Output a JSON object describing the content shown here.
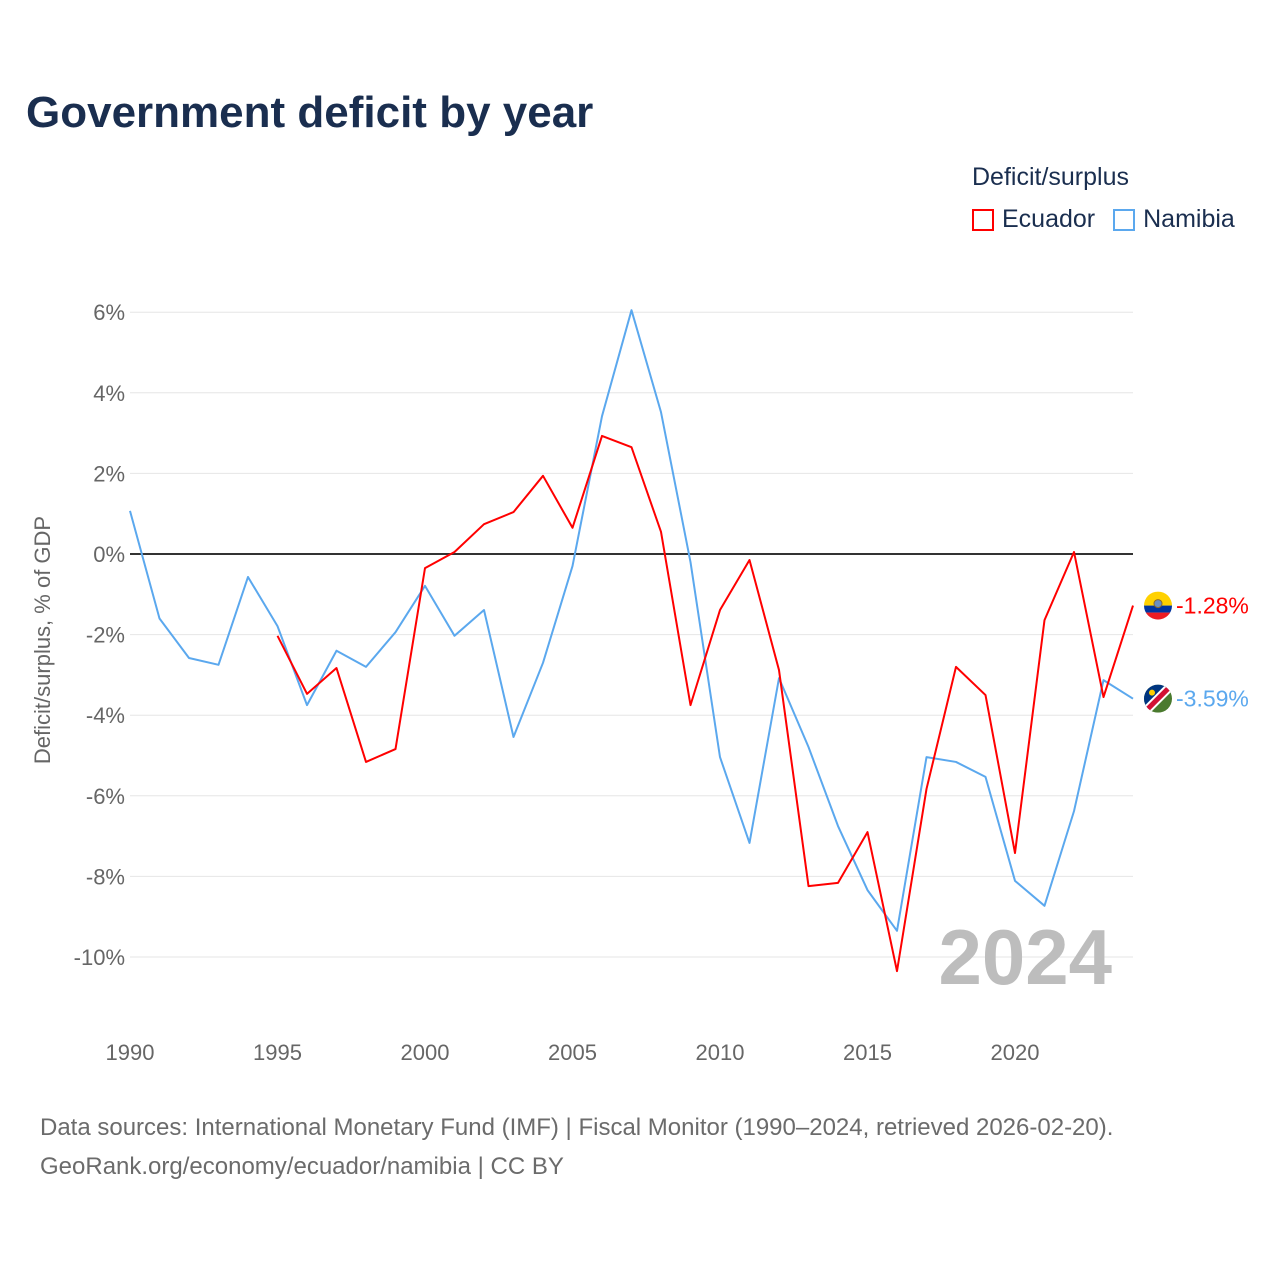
{
  "title": "Government deficit by year",
  "legend": {
    "title": "Deficit/surplus",
    "items": [
      {
        "label": "Ecuador",
        "color": "#ff0000"
      },
      {
        "label": "Namibia",
        "color": "#5ba8ee"
      }
    ]
  },
  "source": {
    "line1": "Data sources: International Monetary Fund (IMF) | Fiscal Monitor (1990–2024, retrieved 2026-02-20).",
    "line2": "GeoRank.org/economy/ecuador/namibia | CC BY"
  },
  "chart_data": {
    "type": "line",
    "title": "Government deficit by year",
    "xlabel": "",
    "ylabel": "Deficit/surplus, % of GDP",
    "xlim": [
      1990,
      2024
    ],
    "ylim": [
      -11,
      6.5
    ],
    "x_ticks": [
      "1990",
      "1995",
      "2000",
      "2005",
      "2010",
      "2015",
      "2020"
    ],
    "y_ticks": [
      "6%",
      "4%",
      "2%",
      "0%",
      "-2%",
      "-4%",
      "-6%",
      "-8%",
      "-10%"
    ],
    "y_tick_values": [
      6,
      4,
      2,
      0,
      -2,
      -4,
      -6,
      -8,
      -10
    ],
    "year_watermark": "2024",
    "series": [
      {
        "name": "Ecuador",
        "color": "#ff0000",
        "end_label": "-1.28%",
        "x": [
          1995,
          1996,
          1997,
          1998,
          1999,
          2000,
          2001,
          2002,
          2003,
          2004,
          2005,
          2006,
          2007,
          2008,
          2009,
          2010,
          2011,
          2012,
          2013,
          2014,
          2015,
          2016,
          2017,
          2018,
          2019,
          2020,
          2021,
          2022,
          2023,
          2024
        ],
        "values": [
          -2.03,
          -3.47,
          -2.83,
          -5.16,
          -4.84,
          -0.35,
          0.05,
          0.74,
          1.04,
          1.94,
          0.65,
          2.93,
          2.65,
          0.55,
          -3.75,
          -1.39,
          -0.15,
          -2.88,
          -8.24,
          -8.16,
          -6.9,
          -10.35,
          -5.83,
          -2.8,
          -3.5,
          -7.42,
          -1.64,
          0.05,
          -3.55,
          -1.28
        ]
      },
      {
        "name": "Namibia",
        "color": "#5ba8ee",
        "end_label": "-3.59%",
        "x": [
          1990,
          1991,
          1992,
          1993,
          1994,
          1995,
          1996,
          1997,
          1998,
          1999,
          2000,
          2001,
          2002,
          2003,
          2004,
          2005,
          2006,
          2007,
          2008,
          2009,
          2010,
          2011,
          2012,
          2013,
          2014,
          2015,
          2016,
          2017,
          2018,
          2019,
          2020,
          2021,
          2022,
          2023,
          2024
        ],
        "values": [
          1.07,
          -1.6,
          -2.58,
          -2.75,
          -0.57,
          -1.79,
          -3.75,
          -2.4,
          -2.8,
          -1.94,
          -0.79,
          -2.03,
          -1.39,
          -4.54,
          -2.7,
          -0.3,
          3.42,
          6.05,
          3.52,
          -0.2,
          -5.04,
          -7.17,
          -3.08,
          -4.79,
          -6.75,
          -8.34,
          -9.35,
          -5.04,
          -5.16,
          -5.53,
          -8.11,
          -8.73,
          -6.38,
          -3.13,
          -3.59
        ]
      }
    ]
  }
}
